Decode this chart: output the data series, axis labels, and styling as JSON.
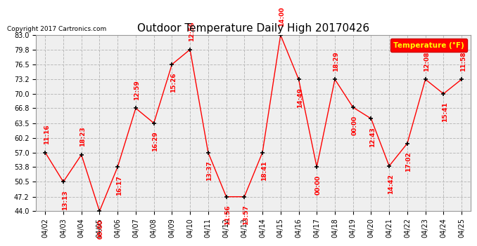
{
  "title": "Outdoor Temperature Daily High 20170426",
  "copyright_text": "Copyright 2017 Cartronics.com",
  "legend_label": "Temperature (°F)",
  "dates": [
    "04/02",
    "04/03",
    "04/04",
    "04/05",
    "04/06",
    "04/07",
    "04/08",
    "04/09",
    "04/10",
    "04/11",
    "04/12",
    "04/13",
    "04/14",
    "04/15",
    "04/16",
    "04/17",
    "04/18",
    "04/19",
    "04/20",
    "04/21",
    "04/22",
    "04/23",
    "04/24",
    "04/25"
  ],
  "temps": [
    57.0,
    50.5,
    56.5,
    44.0,
    53.8,
    66.8,
    63.5,
    76.5,
    79.8,
    57.0,
    47.2,
    47.2,
    57.0,
    83.0,
    73.2,
    53.8,
    73.2,
    67.0,
    64.5,
    54.0,
    59.0,
    73.2,
    70.0,
    73.2
  ],
  "time_labels": [
    "11:16",
    "13:13",
    "18:23",
    "00:00",
    "16:17",
    "12:59",
    "16:29",
    "15:26",
    "12:56",
    "13:37",
    "11:56",
    "13:57",
    "18:41",
    "14:00",
    "14:49",
    "00:00",
    "18:29",
    "00:00",
    "12:43",
    "14:42",
    "17:02",
    "12:08",
    "15:41",
    "11:58"
  ],
  "ylim": [
    44.0,
    83.0
  ],
  "yticks": [
    44.0,
    47.2,
    50.5,
    53.8,
    57.0,
    60.2,
    63.5,
    66.8,
    70.0,
    73.2,
    76.5,
    79.8,
    83.0
  ],
  "line_color": "#FF0000",
  "marker_color": "#000000",
  "label_color": "#FF0000",
  "grid_color": "#BBBBBB",
  "bg_color": "#FFFFFF",
  "plot_bg_color": "#EFEFEF",
  "title_fontsize": 11,
  "tick_fontsize": 7,
  "label_fontsize": 6.5,
  "legend_bg_color": "#FF0000",
  "legend_text_color": "#FFFF00"
}
